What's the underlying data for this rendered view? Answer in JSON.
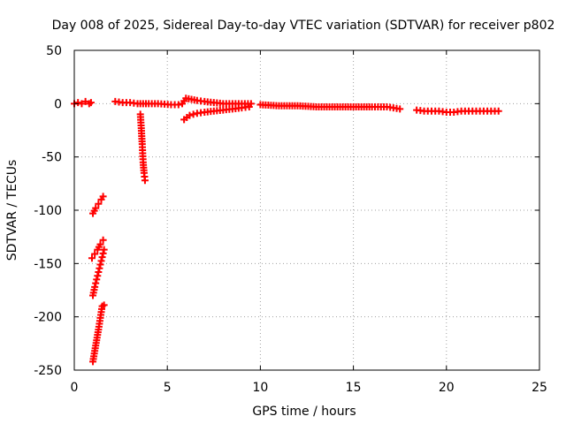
{
  "chart_data": {
    "type": "scatter",
    "title": "Day 008 of 2025, Sidereal Day-to-day VTEC variation (SDTVAR) for receiver p802",
    "xlabel": "GPS time / hours",
    "ylabel": "SDTVAR / TECUs",
    "xlim": [
      0,
      25
    ],
    "ylim": [
      -250,
      50
    ],
    "xticks": [
      0,
      5,
      10,
      15,
      20,
      25
    ],
    "yticks": [
      50,
      0,
      -50,
      -100,
      -150,
      -200,
      -250
    ],
    "grid": true,
    "marker": "plus",
    "color": "#ff0000",
    "series": [
      {
        "name": "arc-early-zero",
        "x": [
          0.0,
          0.2,
          0.4,
          0.6,
          0.8,
          0.9
        ],
        "y": [
          0,
          1,
          0,
          2,
          0,
          1
        ]
      },
      {
        "name": "arc-early-low-1",
        "x": [
          1.0,
          1.15,
          1.3,
          1.45,
          1.55
        ],
        "y": [
          -103,
          -98,
          -94,
          -90,
          -87
        ]
      },
      {
        "name": "arc-early-low-2",
        "x": [
          0.95,
          1.1,
          1.25,
          1.4,
          1.55
        ],
        "y": [
          -145,
          -141,
          -137,
          -132,
          -128
        ]
      },
      {
        "name": "arc-early-low-3",
        "x": [
          1.0,
          1.1,
          1.2,
          1.3,
          1.4,
          1.5,
          1.6
        ],
        "y": [
          -180,
          -172,
          -165,
          -158,
          -151,
          -144,
          -137
        ]
      },
      {
        "name": "arc-early-low-4",
        "x": [
          1.0,
          1.1,
          1.2,
          1.3,
          1.4,
          1.5,
          1.6
        ],
        "y": [
          -242,
          -232,
          -222,
          -212,
          -201,
          -190,
          -189
        ]
      },
      {
        "name": "arc-mid-zero",
        "x": [
          2.2,
          2.6,
          3.0,
          3.4,
          4.0,
          4.5,
          5.2,
          5.6
        ],
        "y": [
          2,
          1,
          1,
          0,
          0,
          0,
          -1,
          -1
        ]
      },
      {
        "name": "arc-3.5h",
        "x": [
          3.55,
          3.6,
          3.65,
          3.7,
          3.75,
          3.8
        ],
        "y": [
          -10,
          -23,
          -38,
          -55,
          -65,
          -72
        ]
      },
      {
        "name": "arc-6h-upper",
        "x": [
          5.8,
          6.0,
          6.3,
          6.6,
          7.0,
          7.5,
          8.0,
          8.5,
          9.0,
          9.5
        ],
        "y": [
          0,
          5,
          4,
          3,
          2,
          1,
          0,
          0,
          0,
          0
        ]
      },
      {
        "name": "arc-6h-lower",
        "x": [
          5.9,
          6.2,
          6.6,
          7.0,
          7.5,
          8.0,
          8.5,
          9.0,
          9.4
        ],
        "y": [
          -15,
          -11,
          -9,
          -8,
          -7,
          -6,
          -5,
          -4,
          -3
        ]
      },
      {
        "name": "arc-late",
        "x": [
          10.0,
          11.0,
          12.0,
          13.0,
          14.0,
          15.0,
          16.0,
          16.8,
          17.5
        ],
        "y": [
          -1,
          -2,
          -2,
          -3,
          -3,
          -3,
          -3,
          -3,
          -5
        ]
      },
      {
        "name": "arc-end",
        "x": [
          18.4,
          18.8,
          19.2,
          19.6,
          20.0,
          20.4,
          20.8,
          21.2,
          21.6,
          22.0,
          22.4,
          22.8
        ],
        "y": [
          -6,
          -7,
          -7,
          -7,
          -8,
          -8,
          -7,
          -7,
          -7,
          -7,
          -7,
          -7
        ]
      }
    ]
  }
}
